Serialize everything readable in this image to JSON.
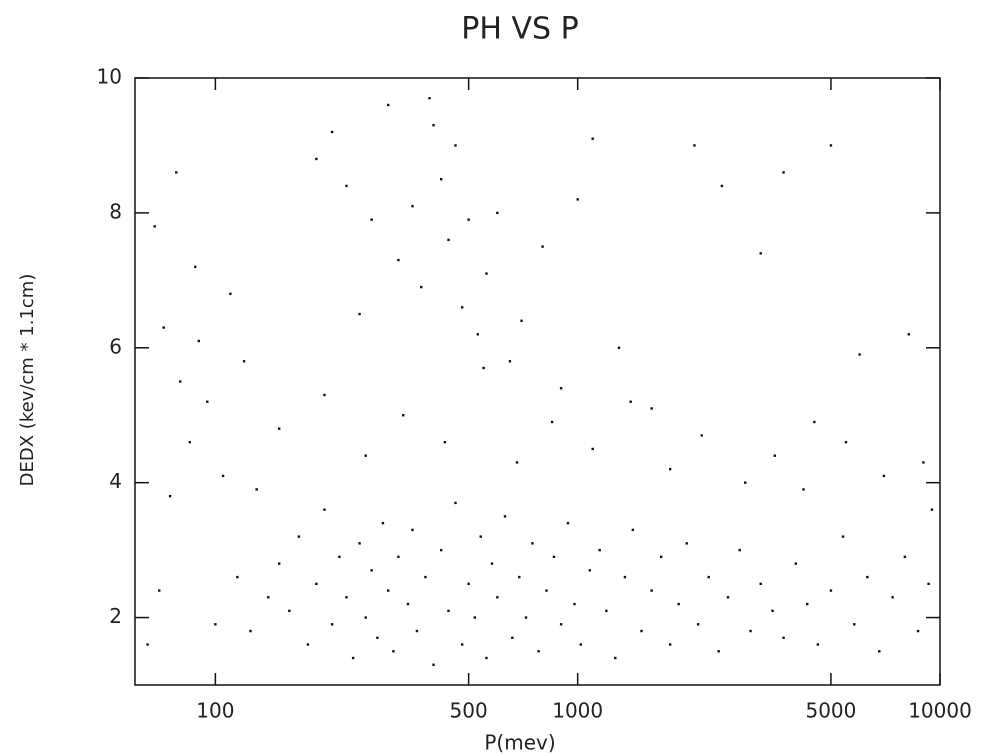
{
  "chart_data": {
    "type": "scatter",
    "title": "PH VS P",
    "xlabel": "P(mev)",
    "ylabel": "DEDX (kev/cm * 1.1cm)",
    "xscale": "log",
    "xlim": [
      60,
      10000
    ],
    "ylim": [
      1,
      10
    ],
    "xticks": [
      100,
      500,
      1000,
      5000,
      10000
    ],
    "yticks": [
      2,
      4,
      6,
      8,
      10
    ],
    "grid": false,
    "color": "#111111",
    "x": [
      150,
      160,
      170,
      180,
      190,
      200,
      210,
      220,
      230,
      240,
      250,
      260,
      270,
      280,
      290,
      300,
      310,
      320,
      340,
      350,
      360,
      380,
      400,
      420,
      440,
      460,
      480,
      500,
      520,
      540,
      560,
      580,
      600,
      630,
      660,
      690,
      720,
      750,
      780,
      820,
      860,
      900,
      940,
      980,
      1020,
      1080,
      1150,
      1200,
      1270,
      1350,
      1420,
      1500,
      1600,
      1700,
      1800,
      1900,
      2000,
      2150,
      2300,
      2450,
      2600,
      2800,
      3000,
      3200,
      3450,
      3700,
      4000,
      4300,
      4600,
      5000,
      5400,
      5800,
      6300,
      6800,
      7400,
      8000,
      8700,
      9300,
      130,
      140,
      125,
      115,
      65,
      70,
      75,
      80,
      85,
      90,
      95,
      100,
      105,
      110,
      68,
      72,
      88,
      120,
      78,
      190,
      210,
      230,
      250,
      270,
      300,
      320,
      350,
      370,
      390,
      400,
      420,
      440,
      460,
      480,
      500,
      530,
      560,
      600,
      650,
      700,
      800,
      900,
      1000,
      1100,
      1300,
      1600,
      2100,
      2500,
      3200,
      3700,
      4500,
      5000,
      6000,
      8200,
      9000,
      150,
      200,
      260,
      330,
      430,
      550,
      680,
      850,
      1100,
      1400,
      1800,
      2200,
      2900,
      3500,
      4200,
      5500,
      7000,
      9500
    ],
    "values": [
      2.8,
      2.1,
      3.2,
      1.6,
      2.5,
      3.6,
      1.9,
      2.9,
      2.3,
      1.4,
      3.1,
      2.0,
      2.7,
      1.7,
      3.4,
      2.4,
      1.5,
      2.9,
      2.2,
      3.3,
      1.8,
      2.6,
      1.3,
      3.0,
      2.1,
      3.7,
      1.6,
      2.5,
      2.0,
      3.2,
      1.4,
      2.8,
      2.3,
      3.5,
      1.7,
      2.6,
      2.0,
      3.1,
      1.5,
      2.4,
      2.9,
      1.9,
      3.4,
      2.2,
      1.6,
      2.7,
      3.0,
      2.1,
      1.4,
      2.6,
      3.3,
      1.8,
      2.4,
      2.9,
      1.6,
      2.2,
      3.1,
      1.9,
      2.6,
      1.5,
      2.3,
      3.0,
      1.8,
      2.5,
      2.1,
      1.7,
      2.8,
      2.2,
      1.6,
      2.4,
      3.2,
      1.9,
      2.6,
      1.5,
      2.3,
      2.9,
      1.8,
      2.5,
      3.9,
      2.3,
      1.8,
      2.6,
      1.6,
      2.4,
      3.8,
      5.5,
      4.6,
      6.1,
      5.2,
      1.9,
      4.1,
      6.8,
      7.8,
      6.3,
      7.2,
      5.8,
      8.6,
      8.8,
      9.2,
      8.4,
      6.5,
      7.9,
      9.6,
      7.3,
      8.1,
      6.9,
      9.7,
      9.3,
      8.5,
      7.6,
      9.0,
      6.6,
      7.9,
      6.2,
      7.1,
      8.0,
      5.8,
      6.4,
      7.5,
      5.4,
      8.2,
      9.1,
      6.0,
      5.1,
      9.0,
      8.4,
      7.4,
      8.6,
      4.9,
      9.0,
      5.9,
      6.2,
      4.3,
      4.8,
      5.3,
      4.4,
      5.0,
      4.6,
      5.7,
      4.3,
      4.9,
      4.5,
      5.2,
      4.2,
      4.7,
      4.0,
      4.4,
      3.9,
      4.6,
      4.1,
      3.6
    ]
  }
}
